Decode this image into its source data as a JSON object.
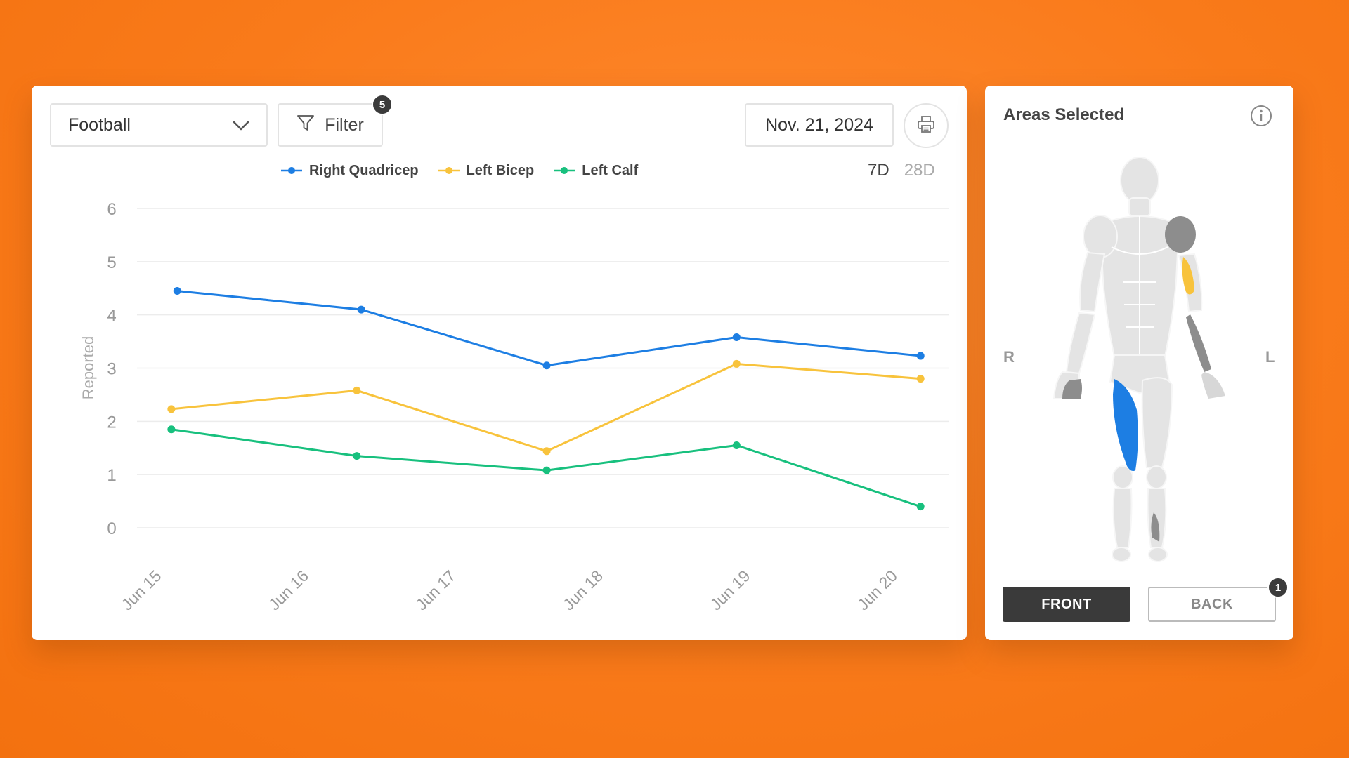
{
  "toolbar": {
    "sport_select": "Football",
    "filter_label": "Filter",
    "filter_badge": "5",
    "date": "Nov. 21, 2024"
  },
  "legend": [
    {
      "name": "Right Quadricep",
      "color": "#1d7ee3"
    },
    {
      "name": "Left Bicep",
      "color": "#f8c33c"
    },
    {
      "name": "Left Calf",
      "color": "#18c07e"
    }
  ],
  "range_toggle": {
    "options": [
      "7D",
      "28D"
    ],
    "active": "7D"
  },
  "chart_data": {
    "type": "line",
    "x": [
      "Jun 15",
      "Jun 16",
      "Jun 17",
      "Jun 18",
      "Jun 19",
      "Jun 20"
    ],
    "ylabel": "Reported",
    "ylim": [
      0,
      6
    ],
    "yticks": [
      0,
      1,
      2,
      3,
      4,
      5,
      6
    ],
    "grid": true,
    "series": [
      {
        "name": "Right Quadricep",
        "color": "#1d7ee3",
        "points": [
          [
            0.13,
            4.45
          ],
          [
            1.38,
            4.1
          ],
          [
            2.64,
            3.05
          ],
          [
            3.93,
            3.58
          ],
          [
            5.18,
            3.23
          ]
        ]
      },
      {
        "name": "Left Bicep",
        "color": "#f8c33c",
        "points": [
          [
            0.09,
            2.23
          ],
          [
            1.35,
            2.58
          ],
          [
            2.64,
            1.44
          ],
          [
            3.93,
            3.08
          ],
          [
            5.18,
            2.8
          ]
        ]
      },
      {
        "name": "Left Calf",
        "color": "#18c07e",
        "points": [
          [
            0.09,
            1.85
          ],
          [
            1.35,
            1.35
          ],
          [
            2.64,
            1.08
          ],
          [
            3.93,
            1.55
          ],
          [
            5.18,
            0.4
          ]
        ]
      }
    ]
  },
  "areas": {
    "title": "Areas Selected",
    "right_label": "R",
    "left_label": "L",
    "front_label": "FRONT",
    "back_label": "BACK",
    "back_badge": "1",
    "highlight_colors": {
      "selected_blue": "#1d7ee3",
      "selected_yellow": "#f8c33c",
      "marked_gray": "#8d8d8d"
    }
  }
}
